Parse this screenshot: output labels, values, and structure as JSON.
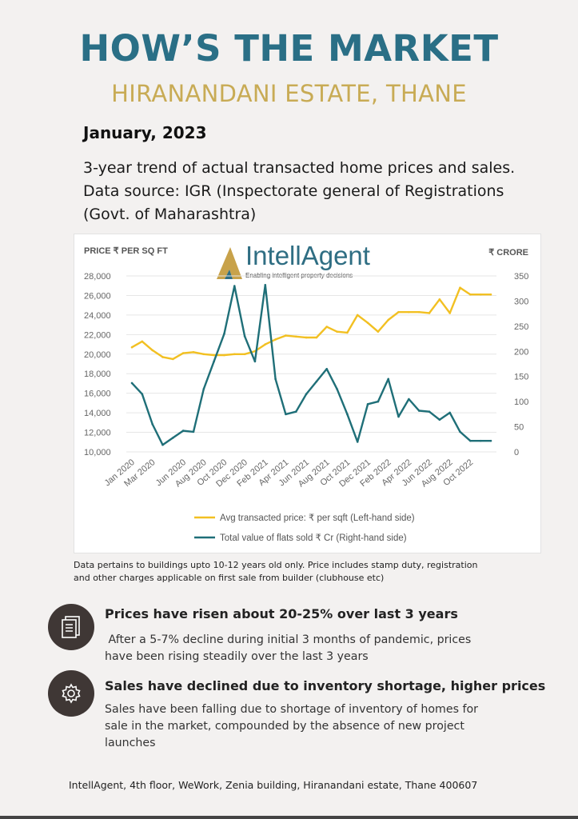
{
  "header": {
    "title": "HOW’S THE MARKET",
    "subtitle": "HIRANANDANI ESTATE, THANE",
    "date": "January, 2023",
    "intro_lines": [
      "3-year trend of actual transacted home prices and sales.",
      "Data source: IGR (Inspectorate general of Registrations",
      "(Govt. of Maharashtra)"
    ]
  },
  "logo": {
    "name": "IntellAgent",
    "tagline": "Enabling intelligent property decisions"
  },
  "chart_data": {
    "type": "line",
    "title": "",
    "ylabel_left": "PRICE ₹ PER SQ FT",
    "ylabel_right": "₹ CRORE",
    "ylim_left": [
      10000,
      28000
    ],
    "ylim_right": [
      0,
      350
    ],
    "yticks_left": [
      "28,000",
      "26,000",
      "24,000",
      "22,000",
      "20,000",
      "18,000",
      "16,000",
      "14,000",
      "12,000",
      "10,000"
    ],
    "yticks_right": [
      "350",
      "300",
      "250",
      "200",
      "150",
      "100",
      "50",
      "0"
    ],
    "categories": [
      "Jan 2020",
      "Feb 2020",
      "Mar 2020",
      "Apr 2020",
      "May 2020",
      "Jun 2020",
      "Jul 2020",
      "Aug 2020",
      "Sep 2020",
      "Oct 2020",
      "Nov 2020",
      "Dec 2020",
      "Jan 2021",
      "Feb 2021",
      "Mar 2021",
      "Apr 2021",
      "May 2021",
      "Jun 2021",
      "Jul 2021",
      "Aug 2021",
      "Sep 2021",
      "Oct 2021",
      "Nov 2021",
      "Dec 2021",
      "Jan 2022",
      "Feb 2022",
      "Mar 2022",
      "Apr 2022",
      "May 2022",
      "Jun 2022",
      "Jul 2022",
      "Aug 2022",
      "Sep 2022",
      "Oct 2022",
      "Nov 2022",
      "Dec 2022"
    ],
    "xtick_labels": [
      "Jan 2020",
      "Mar 2020",
      "Jun 2020",
      "Aug 2020",
      "Oct 2020",
      "Dec 2020",
      "Feb 2021",
      "Apr 2021",
      "Jun 2021",
      "Aug 2021",
      "Oct 2021",
      "Dec 2021",
      "Feb 2022",
      "Apr 2022",
      "Jun 2022",
      "Aug 2022",
      "Oct 2022"
    ],
    "series": [
      {
        "name": "Avg transacted price: ₹ per sqft (Left-hand side)",
        "axis": "left",
        "color": "#f2c022",
        "values": [
          20700,
          21300,
          20400,
          19700,
          19500,
          20100,
          20200,
          20000,
          19900,
          19900,
          20000,
          20000,
          20300,
          21000,
          21500,
          21900,
          21800,
          21700,
          21700,
          22800,
          22300,
          22200,
          24000,
          23200,
          22300,
          23500,
          24300,
          24300,
          24300,
          24200,
          25600,
          24200,
          26800,
          26100,
          26100,
          26100
        ]
      },
      {
        "name": "Total value of flats sold ₹ Cr (Right-hand side)",
        "axis": "right",
        "color": "#1f6f78",
        "values": [
          137,
          115,
          55,
          14,
          28,
          42,
          40,
          125,
          180,
          235,
          330,
          230,
          180,
          332,
          145,
          75,
          80,
          115,
          140,
          165,
          125,
          75,
          20,
          95,
          100,
          145,
          70,
          105,
          82,
          80,
          64,
          78,
          40,
          22,
          22,
          22
        ]
      }
    ],
    "legend": [
      "Avg transacted price: ₹ per sqft (Left-hand side)",
      "Total value of flats sold ₹ Cr (Right-hand side)"
    ],
    "legend_position": "bottom"
  },
  "note_lines": [
    "Data pertains to buildings upto 10-12 years old only. Price includes stamp duty, registration",
    "and  other charges applicable on first sale from builder (clubhouse etc)"
  ],
  "points": [
    {
      "icon": "document-icon",
      "title": "Prices have risen about 20-25% over last 3 years",
      "body_lines": [
        " After a 5-7% decline during initial 3 months of pandemic, prices",
        "have been rising steadily over the last 3 years"
      ]
    },
    {
      "icon": "gear-icon",
      "title": "Sales have declined due to inventory shortage, higher prices",
      "body_lines": [
        "Sales have been falling due to shortage of inventory of homes for",
        "sale in the market, compounded by the absence of new project",
        "launches"
      ]
    }
  ],
  "footer": "IntellAgent, 4th floor, WeWork, Zenia building, Hiranandani estate, Thane 400607",
  "colors": {
    "title": "#2a6f86",
    "subtitle": "#c8ab55",
    "price_line": "#f2c022",
    "sales_line": "#1f6f78",
    "icon_bg": "#3f3735"
  }
}
